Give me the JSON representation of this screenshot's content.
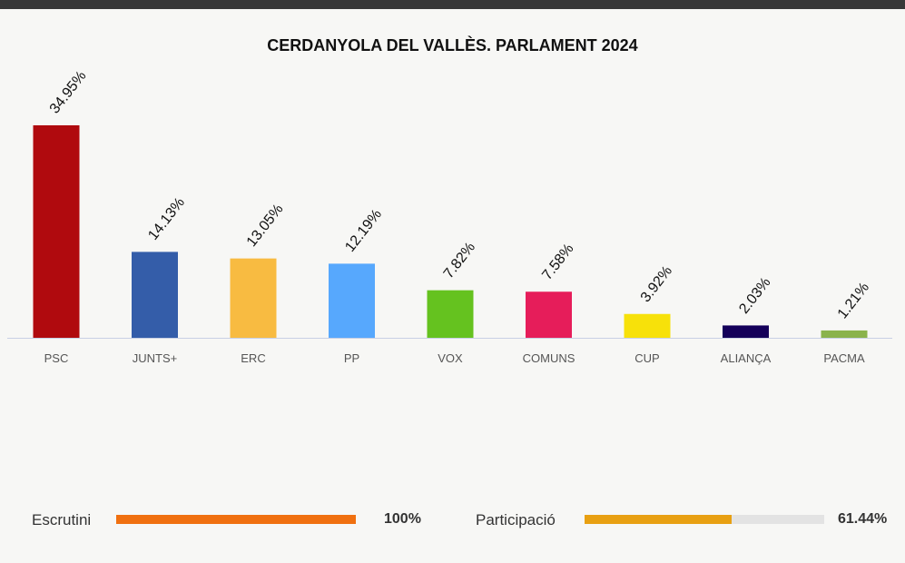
{
  "chart_data": {
    "type": "bar",
    "title": "CERDANYOLA DEL VALLÈS. PARLAMENT 2024",
    "categories": [
      "PSC",
      "JUNTS+",
      "ERC",
      "PP",
      "VOX",
      "COMUNS",
      "CUP",
      "ALIANÇA",
      "PACMA"
    ],
    "values": [
      34.95,
      14.13,
      13.05,
      12.19,
      7.82,
      7.58,
      3.92,
      2.03,
      1.21
    ],
    "value_labels": [
      "34.95%",
      "14.13%",
      "13.05%",
      "12.19%",
      "7.82%",
      "7.58%",
      "3.92%",
      "2.03%",
      "1.21%"
    ],
    "colors": [
      "#b00a0e",
      "#345da9",
      "#f8bb41",
      "#57a8fd",
      "#65c21f",
      "#e61d5a",
      "#f7e10a",
      "#14005a",
      "#8ab34c"
    ],
    "ylim": [
      0,
      34.95
    ],
    "grid": false,
    "legend": "none"
  },
  "footer": {
    "escrutini": {
      "label": "Escrutini",
      "value_text": "100%",
      "fraction": 1.0,
      "color": "#f07010"
    },
    "participacio": {
      "label": "Participació",
      "value_text": "61.44%",
      "fraction": 0.6144,
      "color": "#e8a012"
    }
  }
}
